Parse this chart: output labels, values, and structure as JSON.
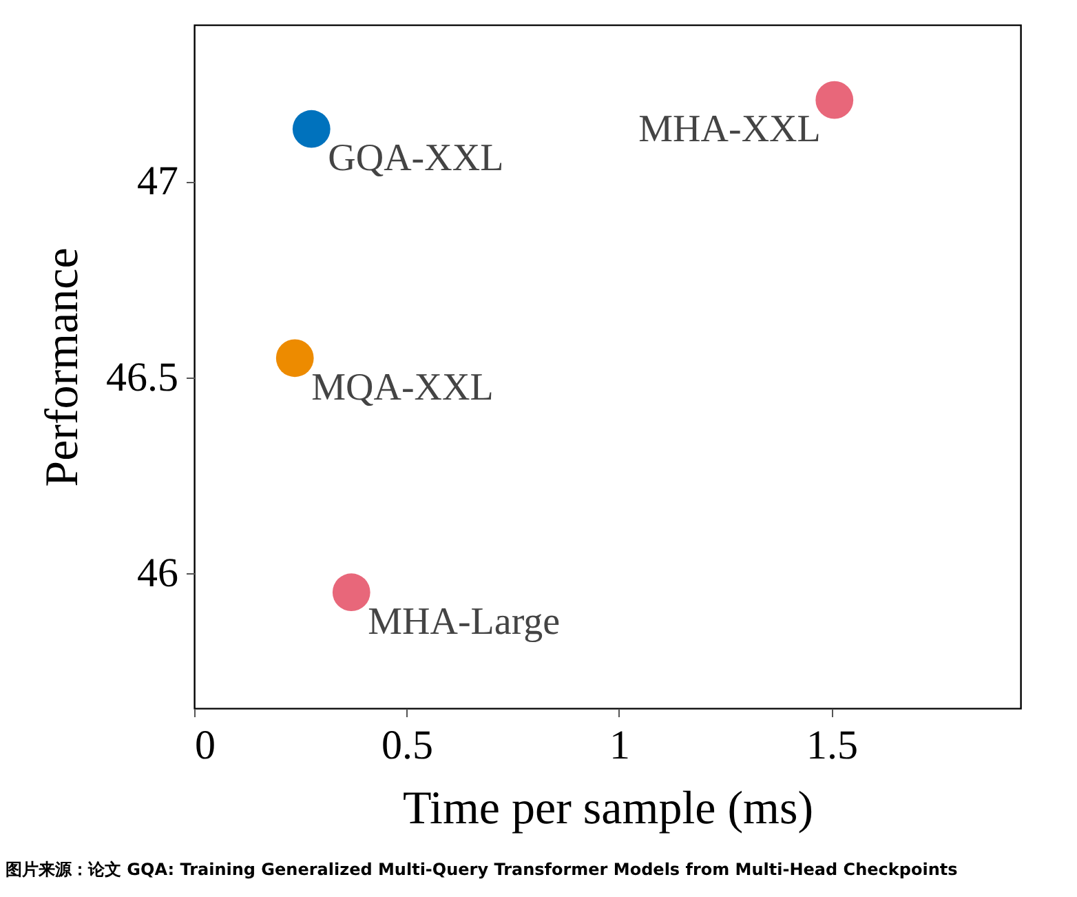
{
  "chart_data": {
    "type": "scatter",
    "xlabel": "Time per sample (ms)",
    "ylabel": "Performance",
    "xlim": [
      0,
      1.945
    ],
    "ylim": [
      45.655,
      47.4
    ],
    "xticks": [
      0,
      0.5,
      1,
      1.5
    ],
    "yticks": [
      46,
      46.5,
      47
    ],
    "grid": false,
    "marker": "circle",
    "series": [
      {
        "name": "GQA-XXL",
        "color": "#0072bd",
        "x": [
          0.276
        ],
        "values": [
          47.134
        ]
      },
      {
        "name": "MQA-XXL",
        "color": "#ed8b00",
        "x": [
          0.237
        ],
        "values": [
          46.549
        ]
      },
      {
        "name": "MHA-Large",
        "color": "#e8677a",
        "x": [
          0.37
        ],
        "values": [
          45.951
        ]
      },
      {
        "name": "MHA-XXL",
        "color": "#e8677a",
        "x": [
          1.507
        ],
        "values": [
          47.208
        ]
      }
    ],
    "annotations": [
      "图片来源：论文 GQA: Training Generalized Multi-Query Transformer Models from Multi-Head Checkpoints"
    ]
  }
}
